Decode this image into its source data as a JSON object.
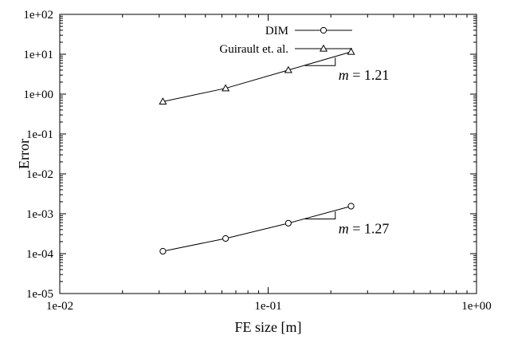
{
  "chart_data": {
    "type": "line",
    "xscale": "log",
    "yscale": "log",
    "xlim": [
      0.01,
      1
    ],
    "ylim": [
      1e-05,
      100
    ],
    "xlabel": "FE size [m]",
    "ylabel": "Error",
    "x_ticks": [
      {
        "value": 0.01,
        "label": "1e-02"
      },
      {
        "value": 0.1,
        "label": "1e-01"
      },
      {
        "value": 1,
        "label": "1e+00"
      }
    ],
    "y_ticks": [
      {
        "value": 100,
        "label": "1e+02"
      },
      {
        "value": 10,
        "label": "1e+01"
      },
      {
        "value": 1,
        "label": "1e+00"
      },
      {
        "value": 0.1,
        "label": "1e-01"
      },
      {
        "value": 0.01,
        "label": "1e-02"
      },
      {
        "value": 0.001,
        "label": "1e-03"
      },
      {
        "value": 0.0001,
        "label": "1e-04"
      },
      {
        "value": 1e-05,
        "label": "1e-05"
      }
    ],
    "grid": false,
    "legend_position": "top-center",
    "series": [
      {
        "name": "DIM",
        "marker": "circle",
        "x": [
          0.03125,
          0.0625,
          0.125,
          0.25
        ],
        "y": [
          0.000115,
          0.00024,
          0.00058,
          0.00155
        ]
      },
      {
        "name": "Guirault et. al.",
        "marker": "triangle",
        "x": [
          0.03125,
          0.0625,
          0.125,
          0.25
        ],
        "y": [
          0.65,
          1.4,
          4.0,
          11.5
        ]
      }
    ],
    "slope_annotations": [
      {
        "label_prefix": "m",
        "label_value": "= 1.21",
        "series": "Guirault et. al.",
        "x0": 0.15,
        "x1": 0.21,
        "y0": 5.2,
        "y1": 8.2
      },
      {
        "label_prefix": "m",
        "label_value": "= 1.27",
        "series": "DIM",
        "x0": 0.15,
        "x1": 0.21,
        "y0": 0.00074,
        "y1": 0.00114
      }
    ]
  },
  "colors": {
    "axis": "#000000",
    "line": "#000000",
    "background": "#ffffff"
  }
}
